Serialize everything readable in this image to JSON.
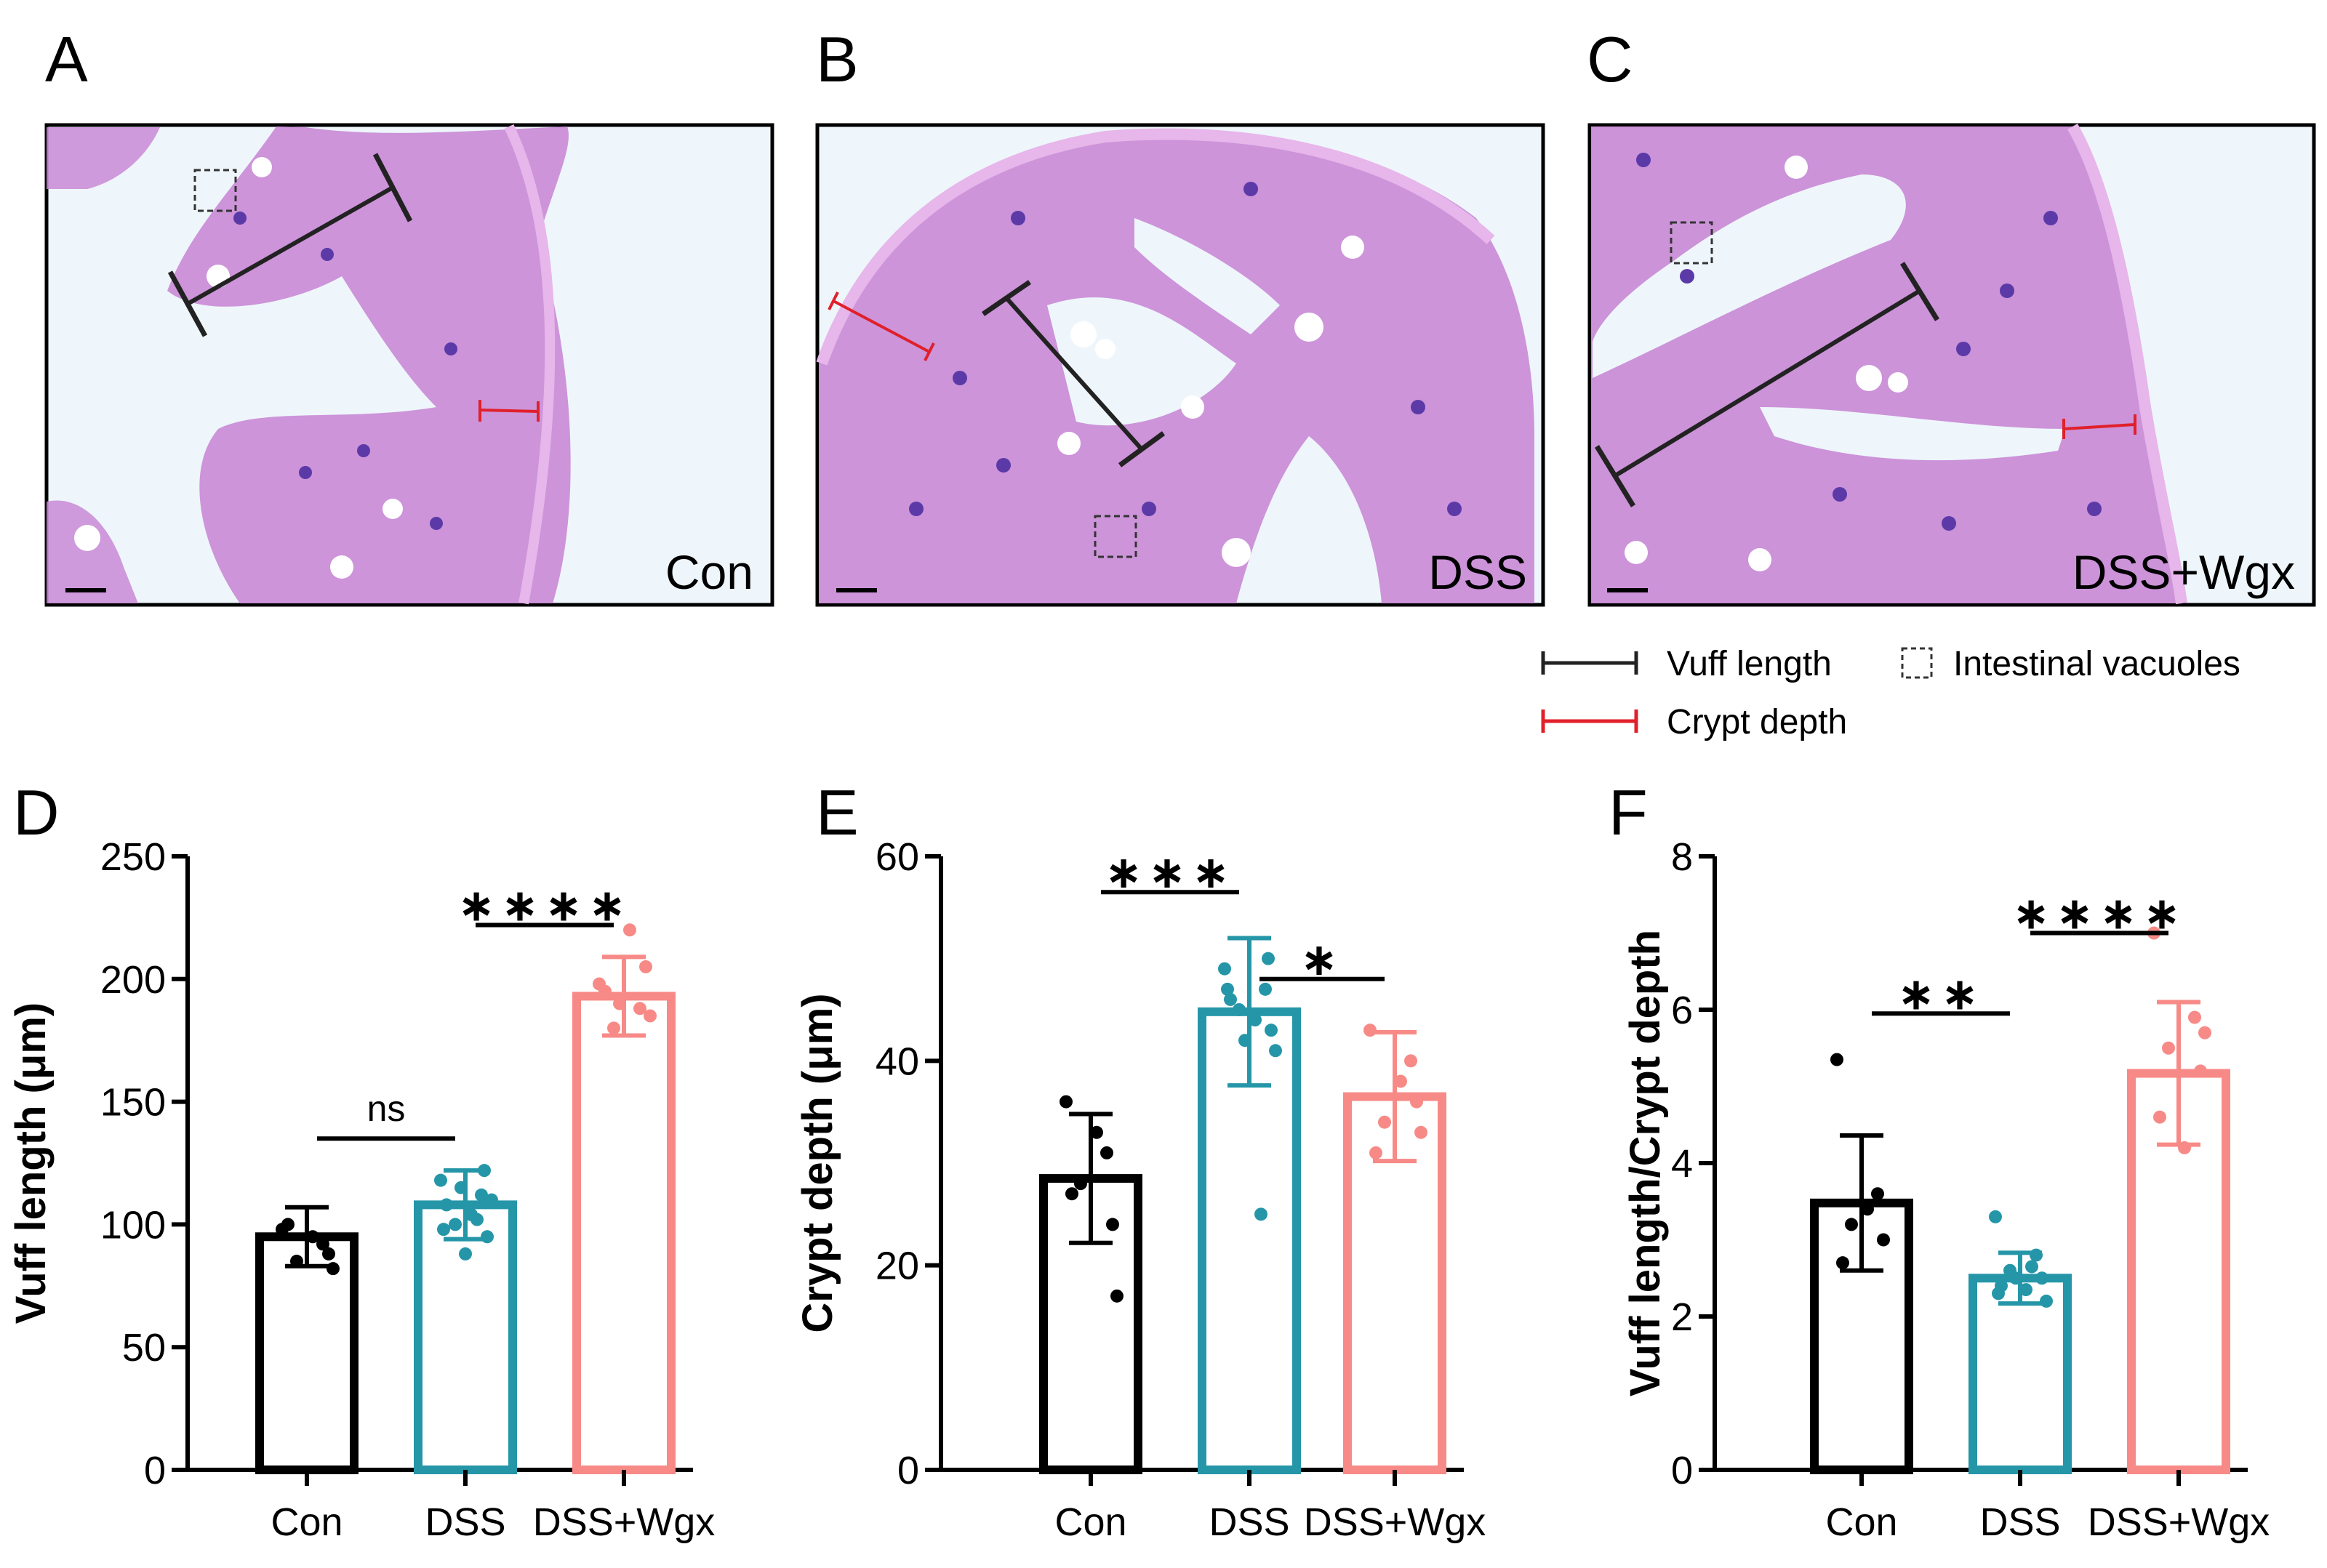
{
  "panels": {
    "A": {
      "letter": "A",
      "label": "Con"
    },
    "B": {
      "letter": "B",
      "label": "DSS"
    },
    "C": {
      "letter": "C",
      "label": "DSS+Wgx"
    }
  },
  "legend": {
    "vuff": "Vuff length",
    "crypt": "Crypt depth",
    "vacuoles": "Intestinal vacuoles"
  },
  "colors": {
    "con": "#000000",
    "dss": "#2596a8",
    "wgx": "#f78a87",
    "vuff_bar": "#222222",
    "crypt_bar": "#e0202a",
    "tissue": "#c98ad6",
    "nuclei": "#5b3aa8",
    "background": "#eef6fb"
  },
  "chart_data": [
    {
      "panel": "D",
      "type": "bar",
      "categories": [
        "Con",
        "DSS",
        "DSS+Wgx"
      ],
      "values": [
        95,
        108,
        193
      ],
      "sd": [
        12,
        14,
        16
      ],
      "points": [
        [
          98,
          92,
          85,
          88,
          100,
          95,
          82
        ],
        [
          118,
          112,
          100,
          95,
          108,
          104,
          110,
          115,
          102,
          98,
          122,
          88
        ],
        [
          198,
          188,
          180,
          205,
          195,
          220,
          185,
          190
        ]
      ],
      "ylabel": "Vuff length (μm)",
      "ylim": [
        0,
        250
      ],
      "yticks": [
        "0",
        "50",
        "100",
        "150",
        "200",
        "250"
      ],
      "comparisons": [
        {
          "from": 0,
          "to": 1,
          "label": "ns",
          "y": 135
        },
        {
          "from": 1,
          "to": 2,
          "label": "****",
          "y": 222
        }
      ]
    },
    {
      "panel": "E",
      "type": "bar",
      "categories": [
        "Con",
        "DSS",
        "DSS+Wgx"
      ],
      "values": [
        28.5,
        44.8,
        36.5
      ],
      "sd": [
        6.3,
        7.2,
        6.3
      ],
      "points": [
        [
          36,
          31,
          28,
          24,
          27,
          33,
          17
        ],
        [
          49,
          47,
          45,
          43,
          46,
          44,
          41,
          42,
          25,
          47,
          50
        ],
        [
          43,
          40,
          34,
          36,
          31,
          38,
          33
        ]
      ],
      "ylabel": "Crypt depth (μm)",
      "ylim": [
        0,
        60
      ],
      "yticks": [
        "0",
        "20",
        "40",
        "60"
      ],
      "comparisons": [
        {
          "from": 0,
          "to": 1,
          "label": "***",
          "y": 56.5
        },
        {
          "from": 1,
          "to": 2,
          "label": "*",
          "y": 48
        }
      ]
    },
    {
      "panel": "F",
      "type": "bar",
      "categories": [
        "Con",
        "DSS",
        "DSS+Wgx"
      ],
      "values": [
        3.48,
        2.5,
        5.17
      ],
      "sd": [
        0.88,
        0.33,
        0.93
      ],
      "points": [
        [
          5.35,
          3.6,
          3.2,
          3.0,
          2.7,
          3.4
        ],
        [
          3.3,
          2.8,
          2.6,
          2.5,
          2.4,
          2.35,
          2.2,
          2.5,
          2.65,
          2.3
        ],
        [
          7.0,
          5.9,
          5.5,
          5.2,
          4.6,
          4.2,
          5.7
        ]
      ],
      "ylabel": "Vuff length/Crypt depth",
      "ylim": [
        0,
        8
      ],
      "yticks": [
        "0",
        "2",
        "4",
        "6",
        "8"
      ],
      "comparisons": [
        {
          "from": 0,
          "to": 1,
          "label": "**",
          "y": 5.95
        },
        {
          "from": 1,
          "to": 2,
          "label": "****",
          "y": 7.0
        }
      ]
    }
  ]
}
